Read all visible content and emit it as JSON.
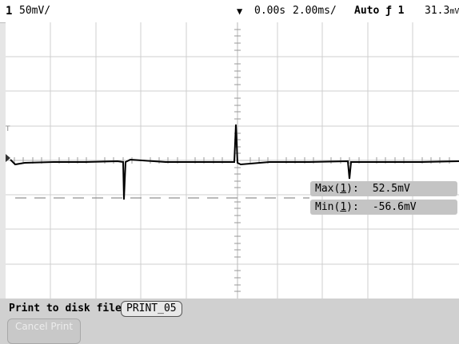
{
  "status": {
    "channel": "1",
    "volts_per_div": "50",
    "volts_unit": "mV/",
    "trigger_marker": "▼",
    "time_position": "0.00s",
    "time_per_div": "2.00",
    "time_unit": "ms/",
    "trigger_mode": "Auto",
    "trigger_source": "ƒ 1",
    "trigger_level": "31.3",
    "trigger_level_unit": "mV"
  },
  "measurements": {
    "max": {
      "label": "Max(",
      "channel": "1",
      "close": "):",
      "value": "52.5mV"
    },
    "min": {
      "label": "Min(",
      "channel": "1",
      "close": "):",
      "value": "-56.6mV"
    }
  },
  "softkeys": {
    "print_label": "Print to disk file:",
    "file_name": "PRINT_05",
    "cancel_button": "Cancel Print"
  },
  "colors": {
    "trace": "#000000",
    "grid": "#cfcfcf",
    "graticule_bg": "#ffffff",
    "measurement_bg": "#c4c4c4",
    "softkey_bg": "#d0d0d0"
  }
}
